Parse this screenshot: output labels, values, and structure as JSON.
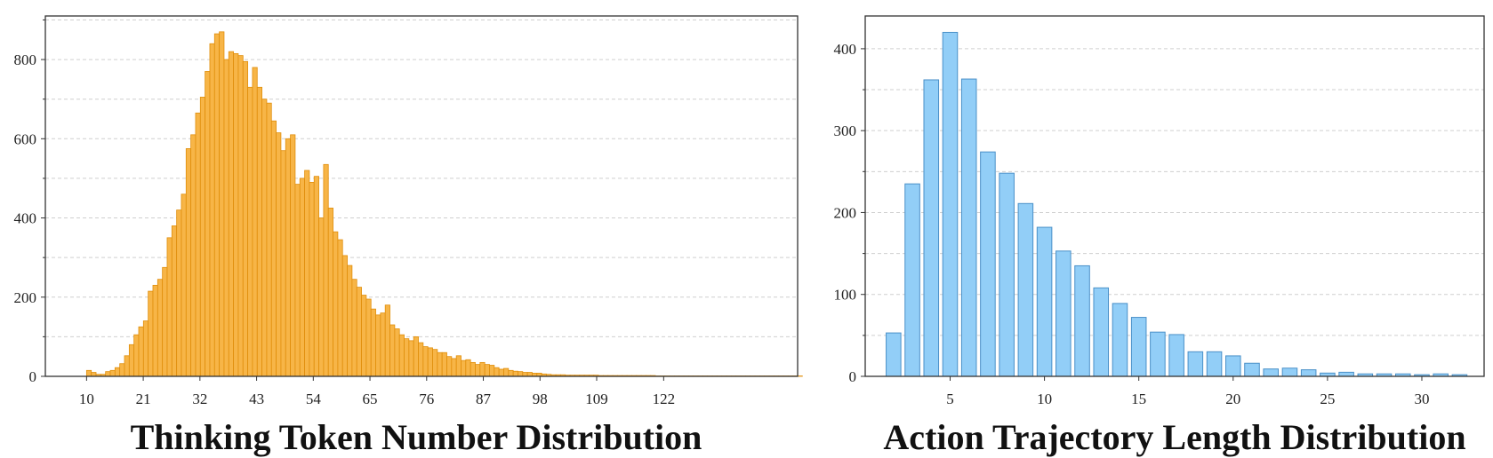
{
  "chart_data": [
    {
      "type": "bar",
      "title": "Thinking Token Number Distribution",
      "xlabel": "",
      "ylabel": "",
      "xlim": [
        2,
        148
      ],
      "ylim": [
        0,
        910
      ],
      "grid": true,
      "x_ticks": [
        10,
        21,
        32,
        43,
        54,
        65,
        76,
        87,
        98,
        109,
        122
      ],
      "y_ticks": [
        0,
        200,
        400,
        600,
        800
      ],
      "bin_start": 10,
      "bin_width": 0.92,
      "bar_color": "#F7B547",
      "edge_color": "#E08E0B",
      "values": [
        15,
        10,
        5,
        5,
        12,
        15,
        22,
        32,
        52,
        80,
        105,
        125,
        140,
        215,
        230,
        245,
        275,
        350,
        380,
        420,
        460,
        575,
        610,
        665,
        705,
        770,
        840,
        865,
        870,
        800,
        820,
        815,
        810,
        795,
        730,
        780,
        730,
        700,
        690,
        645,
        615,
        570,
        600,
        610,
        485,
        500,
        520,
        490,
        505,
        400,
        535,
        425,
        365,
        345,
        305,
        280,
        245,
        225,
        205,
        195,
        170,
        155,
        160,
        180,
        130,
        120,
        105,
        95,
        90,
        100,
        85,
        75,
        72,
        68,
        60,
        60,
        50,
        45,
        52,
        40,
        42,
        35,
        30,
        35,
        30,
        28,
        22,
        18,
        20,
        15,
        13,
        12,
        10,
        10,
        8,
        8,
        6,
        5,
        4,
        4,
        4,
        3,
        3,
        3,
        3,
        3,
        3,
        3,
        2,
        2,
        2,
        2,
        2,
        2,
        2,
        2,
        2,
        2,
        2,
        2,
        1,
        1,
        1,
        1,
        1,
        1,
        1,
        1,
        1,
        1,
        1,
        1,
        1,
        1,
        1,
        1,
        1,
        1,
        1,
        1,
        1,
        1,
        1,
        1,
        1,
        1,
        1,
        1,
        1,
        1,
        1
      ]
    },
    {
      "type": "bar",
      "title": "Action Trajectory Length Distribution",
      "xlabel": "",
      "ylabel": "",
      "xlim": [
        0.5,
        33.3
      ],
      "ylim": [
        0,
        440
      ],
      "grid": true,
      "x_ticks": [
        5,
        10,
        15,
        20,
        25,
        30
      ],
      "y_ticks": [
        0,
        100,
        200,
        300,
        400
      ],
      "bar_color": "#92CEF7",
      "edge_color": "#4A90C8",
      "x": [
        2,
        3,
        4,
        5,
        6,
        7,
        8,
        9,
        10,
        11,
        12,
        13,
        14,
        15,
        16,
        17,
        18,
        19,
        20,
        21,
        22,
        23,
        24,
        25,
        26,
        27,
        28,
        29,
        30,
        31,
        32
      ],
      "values": [
        53,
        235,
        362,
        420,
        363,
        274,
        248,
        211,
        182,
        153,
        135,
        108,
        89,
        72,
        54,
        51,
        30,
        30,
        25,
        16,
        9,
        10,
        8,
        4,
        5,
        3,
        3,
        3,
        2,
        3,
        2
      ]
    }
  ]
}
